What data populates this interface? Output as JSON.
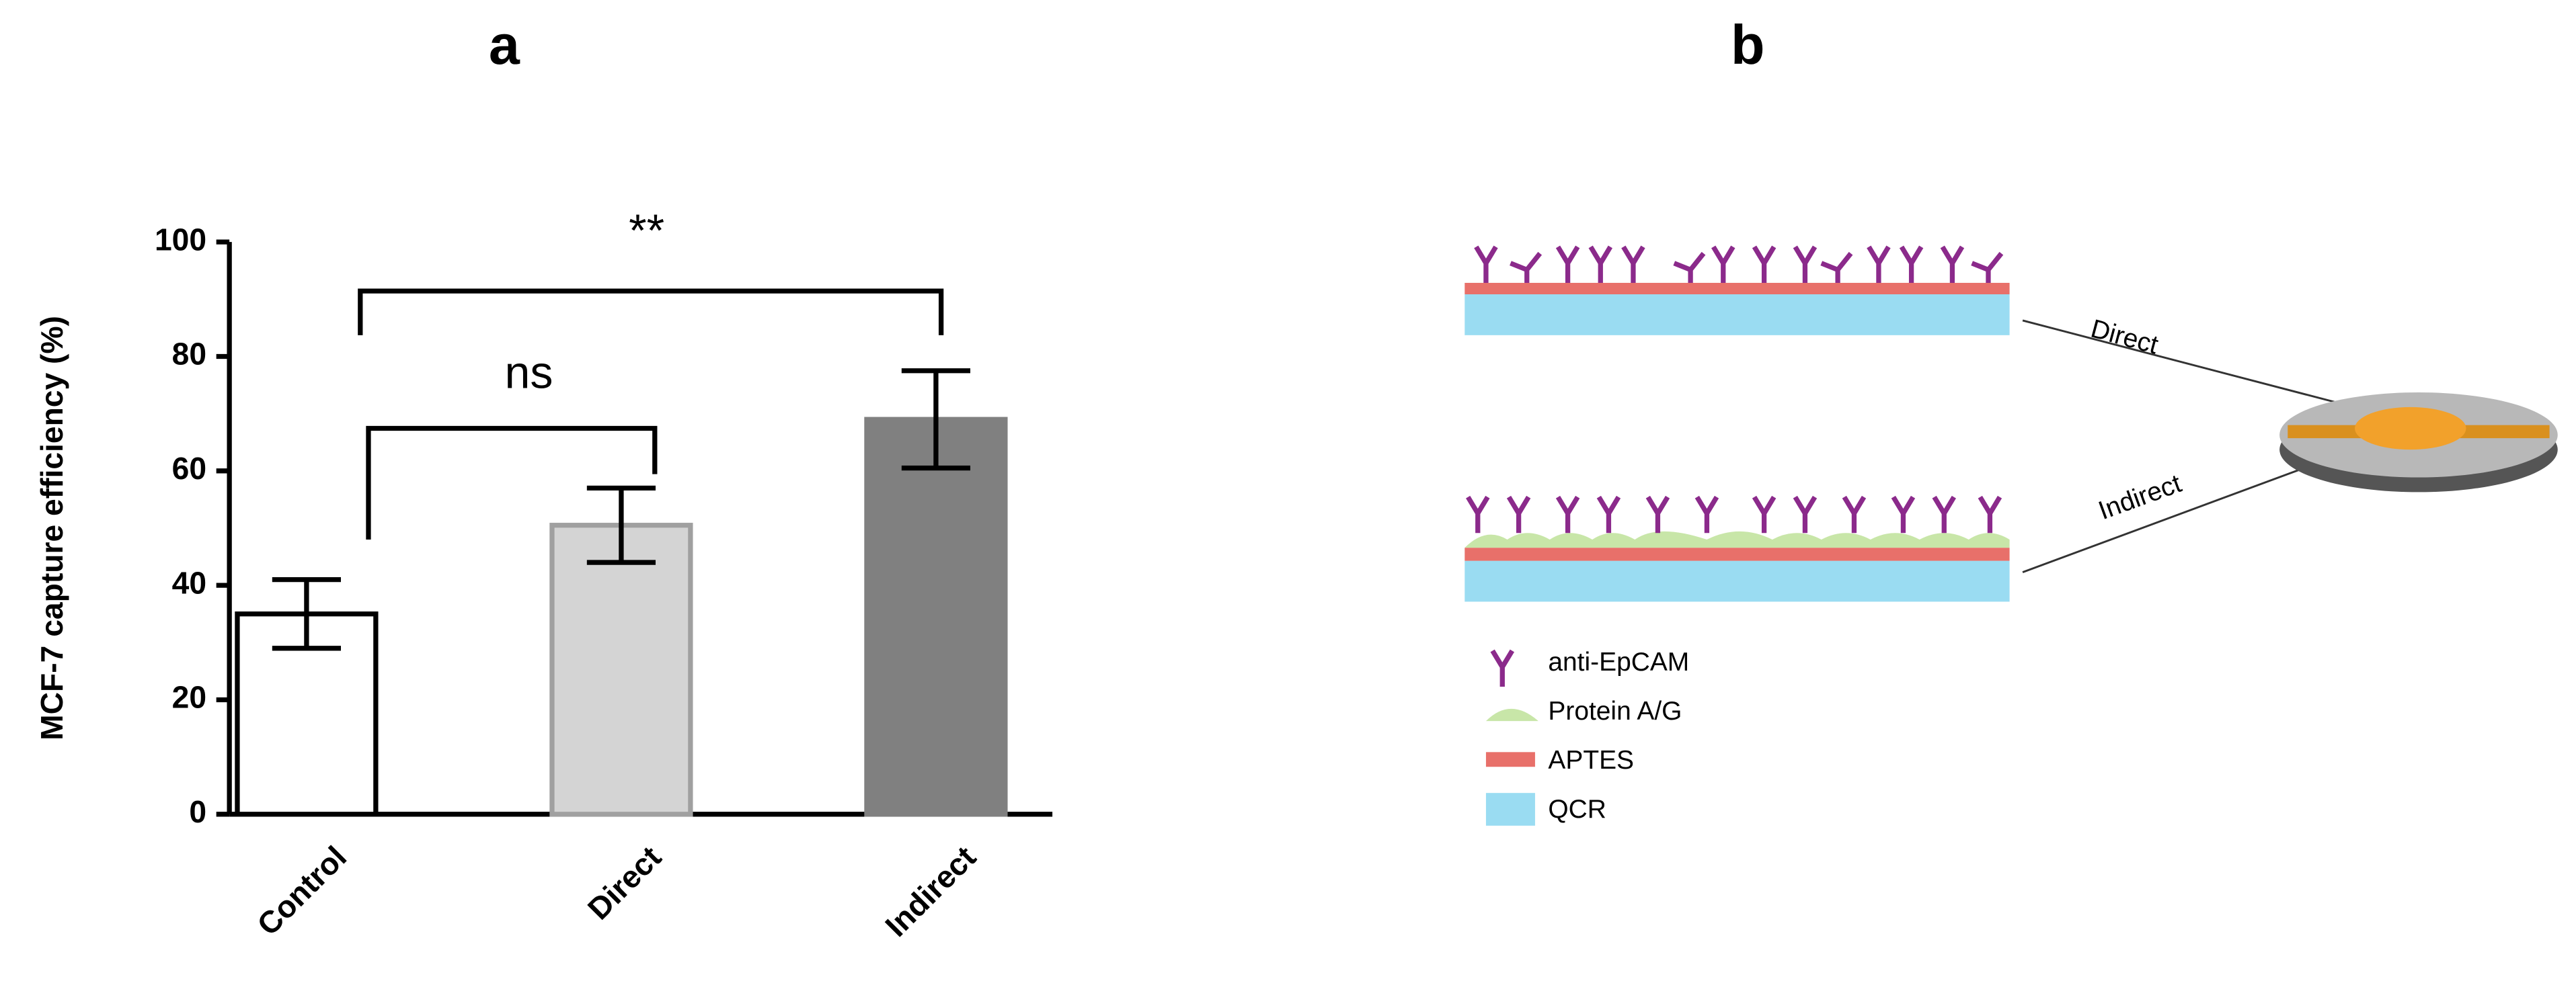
{
  "panel_labels": [
    "a",
    "b"
  ],
  "chart_data": {
    "type": "bar",
    "ylabel": "MCF-7 capture efficiency (%)",
    "categories": [
      "Control",
      "Direct",
      "Indirect"
    ],
    "values": [
      35,
      50.5,
      69
    ],
    "errors": [
      6,
      6.5,
      8.5
    ],
    "colors": [
      "#ffffff",
      "#d4d4d4",
      "#808080"
    ],
    "edge_colors": [
      "#000000",
      "#a0a0a0",
      "#808080"
    ],
    "ylim": [
      0,
      100
    ],
    "yticks": [
      0,
      20,
      40,
      60,
      80,
      100
    ],
    "significance": [
      "**",
      "ns"
    ]
  },
  "diagram": {
    "surfaces": [
      "Direct",
      "Indirect"
    ],
    "legend": [
      "anti-EpCAM",
      "Protein A/G",
      "APTES",
      "QCR"
    ]
  }
}
